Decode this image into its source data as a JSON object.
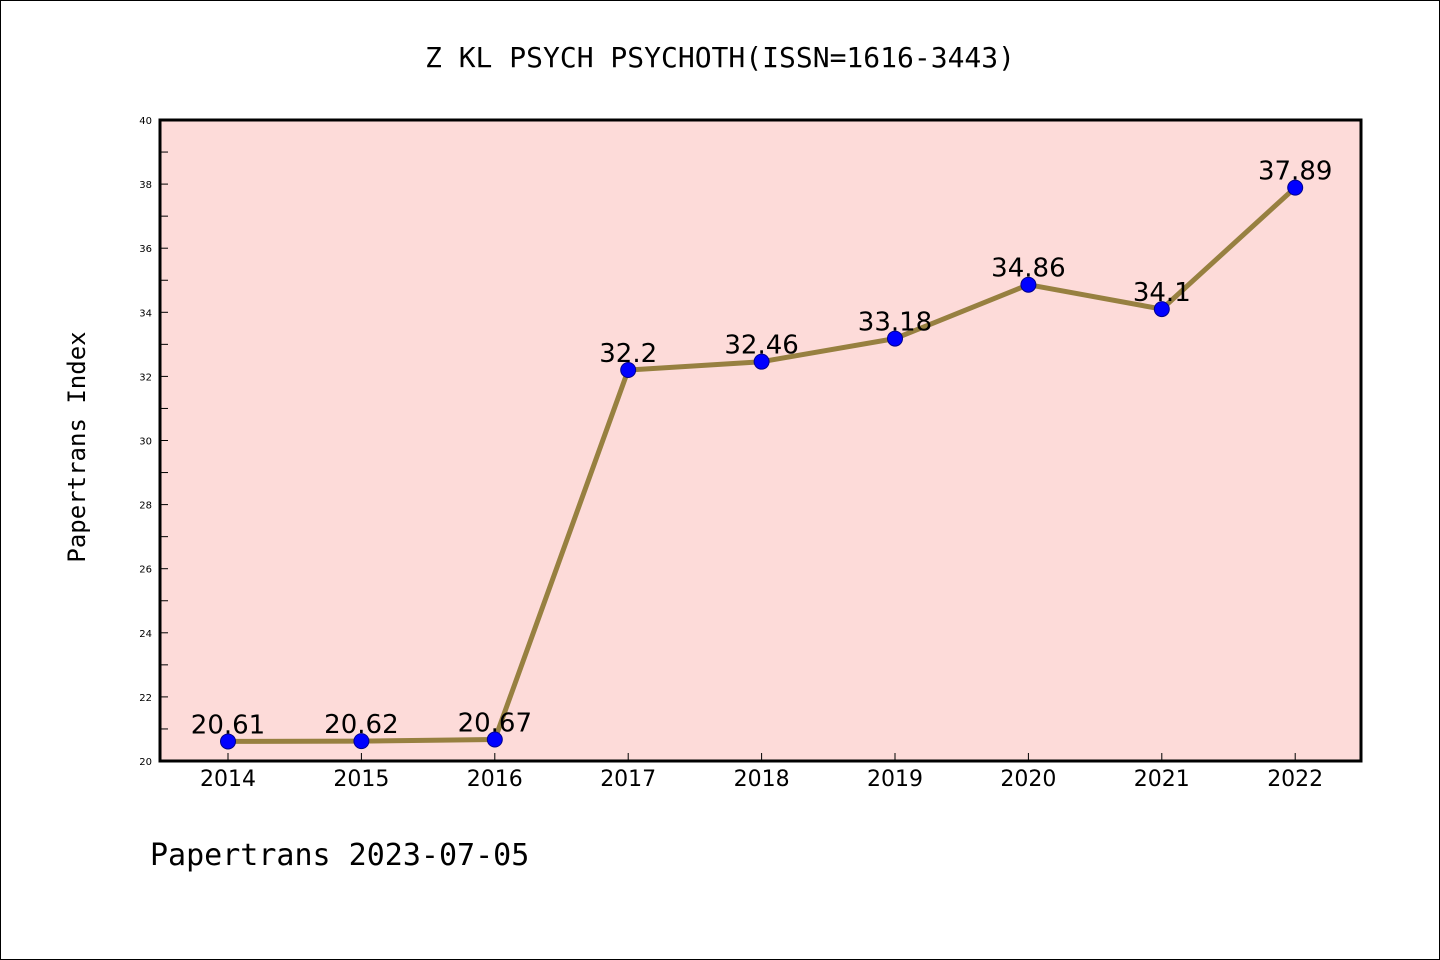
{
  "chart_data": {
    "type": "line",
    "title": "Z KL PSYCH PSYCHOTH(ISSN=1616-3443)",
    "xlabel": "",
    "ylabel": "Papertrans Index",
    "categories": [
      "2014",
      "2015",
      "2016",
      "2017",
      "2018",
      "2019",
      "2020",
      "2021",
      "2022"
    ],
    "values": [
      20.61,
      20.62,
      20.67,
      32.2,
      32.46,
      33.18,
      34.86,
      34.1,
      37.89
    ],
    "data_labels": [
      "20.61",
      "20.62",
      "20.67",
      "32.2",
      "32.46",
      "33.18",
      "34.86",
      "34.1",
      "37.89"
    ],
    "ylim": [
      20,
      40
    ],
    "yticks": [
      "20",
      "22",
      "24",
      "26",
      "28",
      "30",
      "32",
      "34",
      "36",
      "38",
      "40"
    ],
    "grid": false,
    "legend": "none",
    "footer": "Papertrans 2023-07-05",
    "colors": {
      "plot_background": "#fddbd9",
      "line": "#978040",
      "marker": "#0000ff",
      "marker_edge": "#00008b"
    }
  }
}
